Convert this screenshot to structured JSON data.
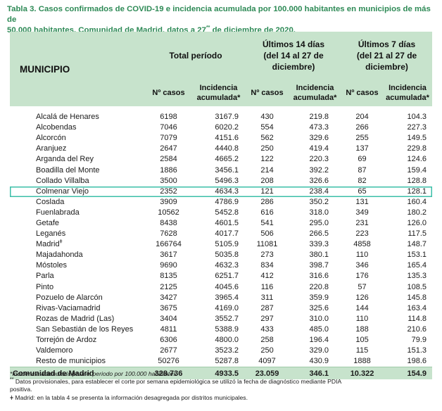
{
  "title": {
    "line1": "Tabla 3. Casos confirmados de COVID-19 e incidencia acumulada por 100.000 habitantes en municipios de más de",
    "line2a": "50.000 habitantes. Comunidad de Madrid, datos a 27",
    "line2sup": "**",
    "line2b": " de diciembre de 2020."
  },
  "headers": {
    "municipio": "MUNICIPIO",
    "total": "Total período",
    "last14_l1": "Últimos 14 días",
    "last14_l2": "(del 14 al 27 de",
    "last14_l3": "diciembre)",
    "last7_l1": "Últimos 7 días",
    "last7_l2": "(del 21 al 27 de",
    "last7_l3": "diciembre)",
    "n_casos": "Nº casos",
    "incidencia_l1": "Incidencia",
    "incidencia_l2": "acumulada*"
  },
  "rows": [
    {
      "name": "Alcalá de Henares",
      "tc": "6198",
      "ti": "3167.9",
      "c14": "430",
      "i14": "219.8",
      "c7": "204",
      "i7": "104.3"
    },
    {
      "name": "Alcobendas",
      "tc": "7046",
      "ti": "6020.2",
      "c14": "554",
      "i14": "473.3",
      "c7": "266",
      "i7": "227.3"
    },
    {
      "name": "Alcorcón",
      "tc": "7079",
      "ti": "4151.6",
      "c14": "562",
      "i14": "329.6",
      "c7": "255",
      "i7": "149.5"
    },
    {
      "name": "Aranjuez",
      "tc": "2647",
      "ti": "4440.8",
      "c14": "250",
      "i14": "419.4",
      "c7": "137",
      "i7": "229.8"
    },
    {
      "name": "Arganda del Rey",
      "tc": "2584",
      "ti": "4665.2",
      "c14": "122",
      "i14": "220.3",
      "c7": "69",
      "i7": "124.6"
    },
    {
      "name": "Boadilla del Monte",
      "tc": "1886",
      "ti": "3456.1",
      "c14": "214",
      "i14": "392.2",
      "c7": "87",
      "i7": "159.4"
    },
    {
      "name": "Collado Villalba",
      "tc": "3500",
      "ti": "5496.3",
      "c14": "208",
      "i14": "326.6",
      "c7": "82",
      "i7": "128.8"
    },
    {
      "name": "Colmenar Viejo",
      "tc": "2352",
      "ti": "4634.3",
      "c14": "121",
      "i14": "238.4",
      "c7": "65",
      "i7": "128.1"
    },
    {
      "name": "Coslada",
      "tc": "3909",
      "ti": "4786.9",
      "c14": "286",
      "i14": "350.2",
      "c7": "131",
      "i7": "160.4"
    },
    {
      "name": "Fuenlabrada",
      "tc": "10562",
      "ti": "5452.8",
      "c14": "616",
      "i14": "318.0",
      "c7": "349",
      "i7": "180.2"
    },
    {
      "name": "Getafe",
      "tc": "8438",
      "ti": "4601.5",
      "c14": "541",
      "i14": "295.0",
      "c7": "231",
      "i7": "126.0"
    },
    {
      "name": "Leganés",
      "tc": "7628",
      "ti": "4017.7",
      "c14": "506",
      "i14": "266.5",
      "c7": "223",
      "i7": "117.5"
    },
    {
      "name": "Madrid",
      "sup": "ǂ",
      "tc": "166764",
      "ti": "5105.9",
      "c14": "11081",
      "i14": "339.3",
      "c7": "4858",
      "i7": "148.7"
    },
    {
      "name": "Majadahonda",
      "tc": "3617",
      "ti": "5035.8",
      "c14": "273",
      "i14": "380.1",
      "c7": "110",
      "i7": "153.1"
    },
    {
      "name": "Móstoles",
      "tc": "9690",
      "ti": "4632.3",
      "c14": "834",
      "i14": "398.7",
      "c7": "346",
      "i7": "165.4"
    },
    {
      "name": "Parla",
      "tc": "8135",
      "ti": "6251.7",
      "c14": "412",
      "i14": "316.6",
      "c7": "176",
      "i7": "135.3"
    },
    {
      "name": "Pinto",
      "tc": "2125",
      "ti": "4045.6",
      "c14": "116",
      "i14": "220.8",
      "c7": "57",
      "i7": "108.5"
    },
    {
      "name": "Pozuelo de Alarcón",
      "tc": "3427",
      "ti": "3965.4",
      "c14": "311",
      "i14": "359.9",
      "c7": "126",
      "i7": "145.8"
    },
    {
      "name": "Rivas-Vaciamadrid",
      "tc": "3675",
      "ti": "4169.0",
      "c14": "287",
      "i14": "325.6",
      "c7": "144",
      "i7": "163.4"
    },
    {
      "name": "Rozas de Madrid (Las)",
      "tc": "3404",
      "ti": "3552.7",
      "c14": "297",
      "i14": "310.0",
      "c7": "110",
      "i7": "114.8"
    },
    {
      "name": "San Sebastián de los Reyes",
      "tc": "4811",
      "ti": "5388.9",
      "c14": "433",
      "i14": "485.0",
      "c7": "188",
      "i7": "210.6"
    },
    {
      "name": "Torrejón de Ardoz",
      "tc": "6306",
      "ti": "4800.0",
      "c14": "258",
      "i14": "196.4",
      "c7": "105",
      "i7": "79.9"
    },
    {
      "name": "Valdemoro",
      "tc": "2677",
      "ti": "3523.2",
      "c14": "250",
      "i14": "329.0",
      "c7": "115",
      "i7": "151.3"
    },
    {
      "name": "Resto de municipios",
      "tc": "50276",
      "ti": "5287.8",
      "c14": "4097",
      "i14": "430.9",
      "c7": "1888",
      "i7": "198.6"
    }
  ],
  "highlight_row": "Colmenar Viejo",
  "total": {
    "name": "Comunidad de Madrid",
    "tc": "328.736",
    "ti": "4933.5",
    "c14": "23.059",
    "i14": "346.1",
    "c7": "10.322",
    "i7": "154.9"
  },
  "notes": {
    "n1": "*Incidencia acumulada para el periodo por 100.000 habitantes",
    "n2a": "**",
    "n2b": " Datos provisionales, para establecer el corte por semana epidemiológica se utilizó la fecha de diagnóstico mediante PDIA",
    "n2c": "positiva.",
    "n3": "ǂ Madrid: en la tabla 4 se presenta la información desagregada por distritos municipales."
  },
  "colors": {
    "header_bg": "#c7e3cc",
    "title": "#2e8a56",
    "highlight": "#3bbfa8"
  }
}
